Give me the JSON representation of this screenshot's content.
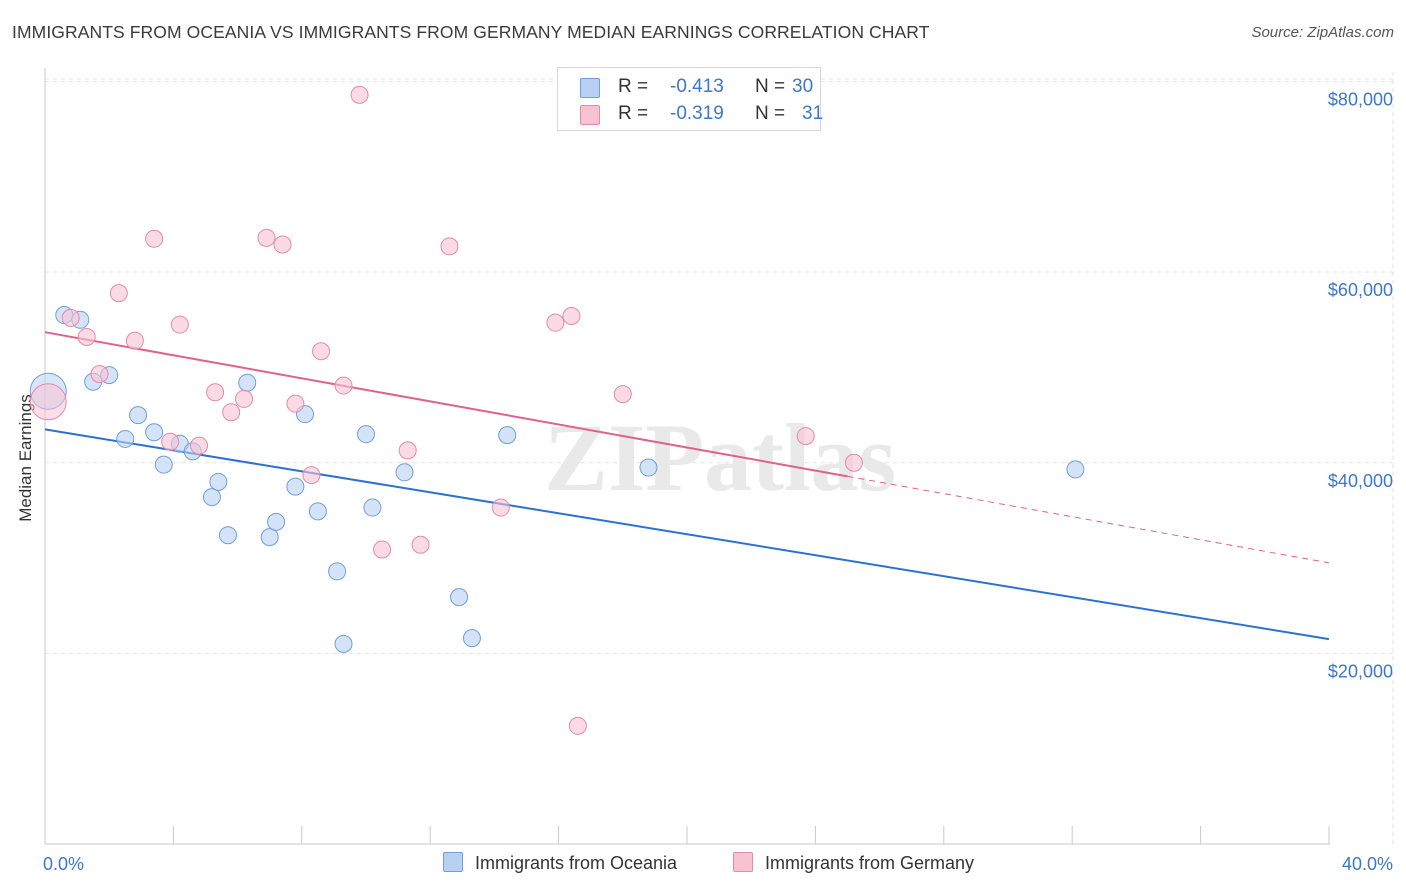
{
  "title": "IMMIGRANTS FROM OCEANIA VS IMMIGRANTS FROM GERMANY MEDIAN EARNINGS CORRELATION CHART",
  "source": "Source: ZipAtlas.com",
  "watermark": "ZIPatlas",
  "colors": {
    "blue_fill": "#b8d1f3",
    "blue_stroke": "#6f9fdc",
    "blue_line": "#2b72d0",
    "pink_fill": "#f7c3d3",
    "pink_stroke": "#e58aa8",
    "pink_line": "#e0628c",
    "axis_text": "#3d78c7",
    "grid": "#e3e3e3"
  },
  "legend": {
    "rows": [
      {
        "r_label": "R =",
        "r_value": "-0.413",
        "n_label": "N =",
        "n_value": "30"
      },
      {
        "r_label": "R =",
        "r_value": "-0.319",
        "n_label": "N =",
        "n_value": "31"
      }
    ]
  },
  "chart_data": {
    "type": "scatter",
    "title": "IMMIGRANTS FROM OCEANIA VS IMMIGRANTS FROM GERMANY MEDIAN EARNINGS CORRELATION CHART",
    "xlabel": "",
    "ylabel": "Median Earnings",
    "xlim": [
      0,
      40
    ],
    "ylim": [
      0,
      81000
    ],
    "x_tick_labels": [
      "0.0%",
      "40.0%"
    ],
    "y_ticks": [
      20000,
      40000,
      60000,
      80000
    ],
    "y_tick_labels": [
      "$20,000",
      "$40,000",
      "$60,000",
      "$80,000"
    ],
    "grid": true,
    "legend_position": "top-center",
    "series": [
      {
        "name": "Immigrants from Oceania",
        "color": "#b8d1f3",
        "r": -0.413,
        "n": 30,
        "trend": {
          "x": [
            0,
            40
          ],
          "y": [
            43500,
            21500
          ],
          "dashed_from": null
        },
        "points": [
          {
            "x": 0.1,
            "y": 47500,
            "big": true
          },
          {
            "x": 0.6,
            "y": 55500
          },
          {
            "x": 1.1,
            "y": 55000
          },
          {
            "x": 1.5,
            "y": 48500
          },
          {
            "x": 2.0,
            "y": 49200
          },
          {
            "x": 2.5,
            "y": 42500
          },
          {
            "x": 2.9,
            "y": 45000
          },
          {
            "x": 3.4,
            "y": 43200
          },
          {
            "x": 3.7,
            "y": 39800
          },
          {
            "x": 4.2,
            "y": 42000
          },
          {
            "x": 4.6,
            "y": 41200
          },
          {
            "x": 5.2,
            "y": 36400
          },
          {
            "x": 5.4,
            "y": 38000
          },
          {
            "x": 5.7,
            "y": 32400
          },
          {
            "x": 6.3,
            "y": 48400
          },
          {
            "x": 7.0,
            "y": 32200
          },
          {
            "x": 7.2,
            "y": 33800
          },
          {
            "x": 7.8,
            "y": 37500
          },
          {
            "x": 8.1,
            "y": 45100
          },
          {
            "x": 8.5,
            "y": 34900
          },
          {
            "x": 9.1,
            "y": 28600
          },
          {
            "x": 9.3,
            "y": 21000
          },
          {
            "x": 10.0,
            "y": 43000
          },
          {
            "x": 10.2,
            "y": 35300
          },
          {
            "x": 11.2,
            "y": 39000
          },
          {
            "x": 12.9,
            "y": 25900
          },
          {
            "x": 13.3,
            "y": 21600
          },
          {
            "x": 14.4,
            "y": 42900
          },
          {
            "x": 18.8,
            "y": 39500
          },
          {
            "x": 32.1,
            "y": 39300
          }
        ]
      },
      {
        "name": "Immigrants from Germany",
        "color": "#f7c3d3",
        "r": -0.319,
        "n": 31,
        "trend": {
          "x": [
            0,
            40
          ],
          "y": [
            53700,
            29500
          ],
          "dashed_from": 25.0
        },
        "points": [
          {
            "x": 0.1,
            "y": 46400,
            "big": true
          },
          {
            "x": 0.8,
            "y": 55200
          },
          {
            "x": 1.3,
            "y": 53200
          },
          {
            "x": 1.7,
            "y": 49300
          },
          {
            "x": 2.3,
            "y": 57800
          },
          {
            "x": 2.8,
            "y": 52800
          },
          {
            "x": 3.4,
            "y": 63500
          },
          {
            "x": 3.9,
            "y": 42200
          },
          {
            "x": 4.2,
            "y": 54500
          },
          {
            "x": 4.8,
            "y": 41800
          },
          {
            "x": 5.3,
            "y": 47400
          },
          {
            "x": 5.8,
            "y": 45300
          },
          {
            "x": 6.2,
            "y": 46700
          },
          {
            "x": 6.9,
            "y": 63600
          },
          {
            "x": 7.4,
            "y": 62900
          },
          {
            "x": 7.8,
            "y": 46200
          },
          {
            "x": 8.3,
            "y": 38700
          },
          {
            "x": 8.6,
            "y": 51700
          },
          {
            "x": 9.3,
            "y": 48100
          },
          {
            "x": 9.8,
            "y": 78600
          },
          {
            "x": 10.5,
            "y": 30900
          },
          {
            "x": 11.3,
            "y": 41300
          },
          {
            "x": 11.7,
            "y": 31400
          },
          {
            "x": 12.6,
            "y": 62700
          },
          {
            "x": 14.2,
            "y": 35300
          },
          {
            "x": 15.9,
            "y": 54700
          },
          {
            "x": 16.4,
            "y": 55400
          },
          {
            "x": 16.6,
            "y": 12400
          },
          {
            "x": 18.0,
            "y": 47200
          },
          {
            "x": 23.7,
            "y": 42800
          },
          {
            "x": 25.2,
            "y": 40000
          }
        ]
      }
    ]
  }
}
